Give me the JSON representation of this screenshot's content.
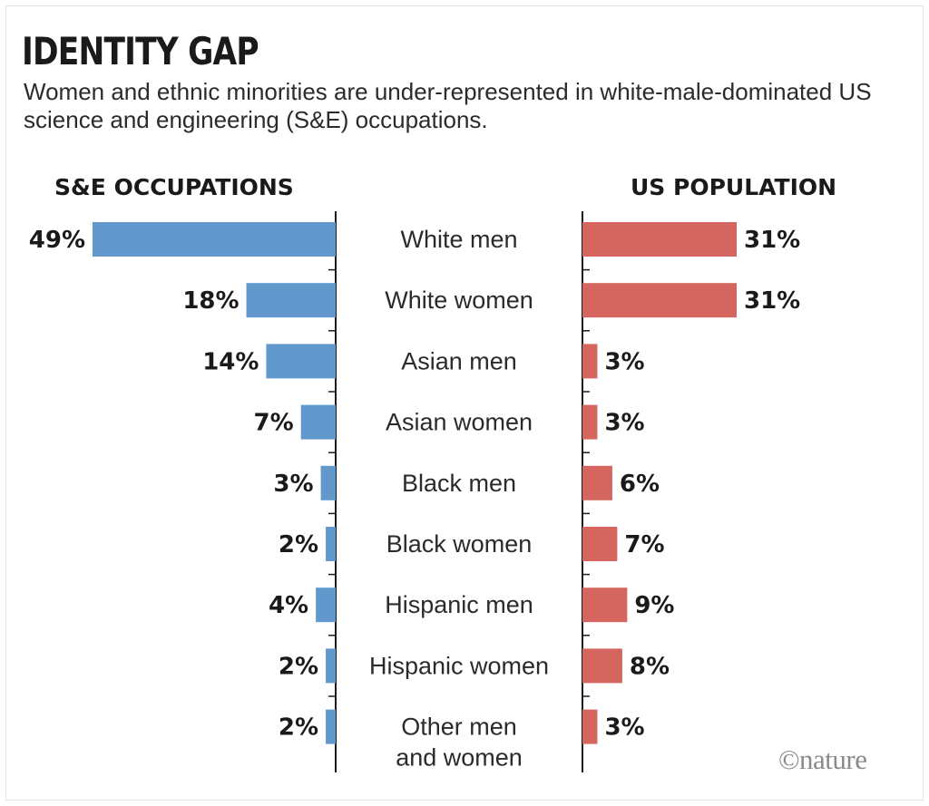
{
  "title": "IDENTITY GAP",
  "subtitle": "Women and ethnic minorities are under-represented in white-male-dominated US science and engineering (S&E) occupations.",
  "credit": "©nature",
  "colors": {
    "left": "#6199cd",
    "right": "#d4655f",
    "axis": "#1a1a1a"
  },
  "chart_data": {
    "type": "bar",
    "orientation": "horizontal-butterfly",
    "title": "IDENTITY GAP",
    "categories": [
      "White men",
      "White women",
      "Asian men",
      "Asian women",
      "Black men",
      "Black women",
      "Hispanic men",
      "Hispanic women",
      "Other men and women"
    ],
    "category_lines": [
      [
        "White men"
      ],
      [
        "White women"
      ],
      [
        "Asian men"
      ],
      [
        "Asian women"
      ],
      [
        "Black men"
      ],
      [
        "Black women"
      ],
      [
        "Hispanic men"
      ],
      [
        "Hispanic women"
      ],
      [
        "Other men",
        "and women"
      ]
    ],
    "series": [
      {
        "name": "S&E OCCUPATIONS",
        "values": [
          49,
          18,
          14,
          7,
          3,
          2,
          4,
          2,
          2
        ],
        "labels": [
          "49%",
          "18%",
          "14%",
          "7%",
          "3%",
          "2%",
          "4%",
          "2%",
          "2%"
        ]
      },
      {
        "name": "US POPULATION",
        "values": [
          31,
          31,
          3,
          3,
          6,
          7,
          9,
          8,
          3
        ],
        "labels": [
          "31%",
          "31%",
          "3%",
          "3%",
          "6%",
          "7%",
          "9%",
          "8%",
          "3%"
        ]
      }
    ],
    "unit": "%"
  }
}
